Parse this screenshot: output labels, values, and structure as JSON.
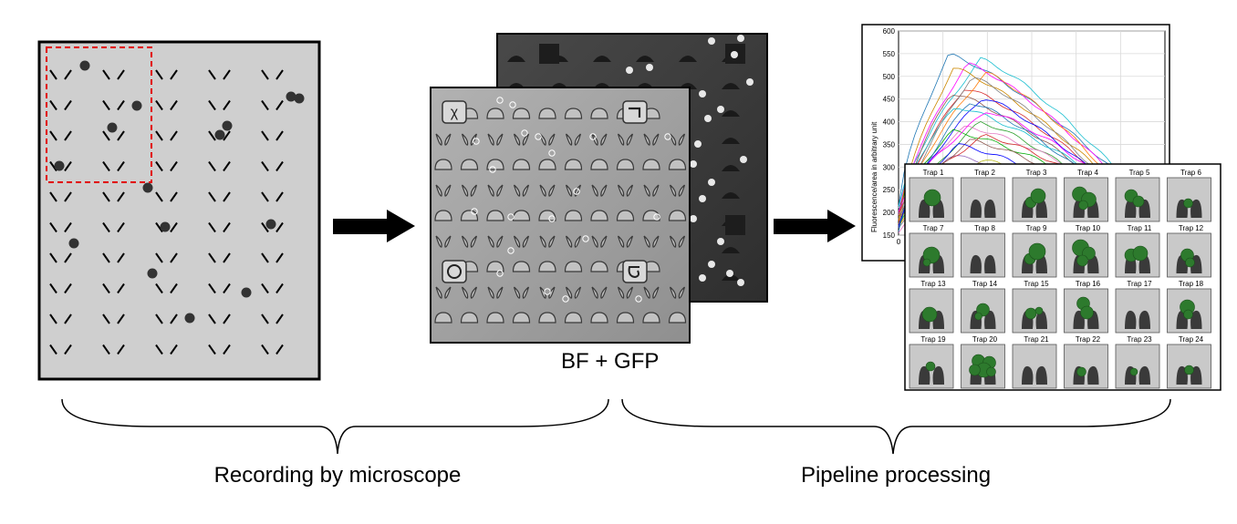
{
  "panels": {
    "microscope": {
      "title": ""
    },
    "images": {
      "caption": "BF + GFP"
    },
    "pipeline": {
      "plot": {
        "y_axis_label": "Fluorescence/area in arbitrary unit",
        "y_ticks": [
          "600",
          "550",
          "500",
          "450",
          "400",
          "350",
          "300",
          "250",
          "200",
          "150"
        ],
        "x_ticks": [
          "0"
        ]
      },
      "traps": [
        "Trap 1",
        "Trap 2",
        "Trap 3",
        "Trap 4",
        "Trap 5",
        "Trap 6",
        "Trap 7",
        "Trap 8",
        "Trap 9",
        "Trap 10",
        "Trap 11",
        "Trap 12",
        "Trap 13",
        "Trap 14",
        "Trap 15",
        "Trap 16",
        "Trap 17",
        "Trap 18",
        "Trap 19",
        "Trap 20",
        "Trap 21",
        "Trap 22",
        "Trap 23",
        "Trap 24"
      ]
    }
  },
  "labels": {
    "left": "Recording by microscope",
    "right": "Pipeline processing"
  },
  "colors": {
    "panel_gray": "#cfcfcf",
    "bf_gray": "#9d9d9d",
    "gfp_dark": "#3e3e3e",
    "cell_green": "#2d7a2d",
    "outline_red": "#e00000",
    "ink": "#000000"
  }
}
